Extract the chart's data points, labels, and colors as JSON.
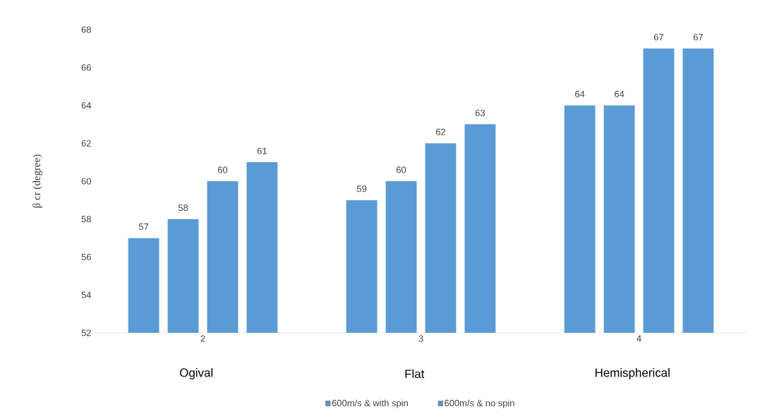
{
  "chart_data": {
    "type": "bar",
    "ylabel": "β cr (degree)",
    "categories": [
      "2",
      "3",
      "4"
    ],
    "series": [
      {
        "name": "600m/s & with spin",
        "color": "#5b9bd5",
        "values": [
          57,
          59,
          64
        ]
      },
      {
        "name": "600m/s & no spin",
        "color": "#5b9bd5",
        "values": [
          58,
          60,
          64
        ]
      },
      {
        "color": "#5b9bd5",
        "values": [
          60,
          62,
          67
        ]
      },
      {
        "color": "#5b9bd5",
        "values": [
          61,
          63,
          67
        ]
      }
    ],
    "ylim": [
      52,
      68
    ],
    "yticks": [
      52,
      54,
      56,
      58,
      60,
      62,
      64,
      66,
      68
    ],
    "data_labels": true,
    "legend": "bottom",
    "annotations": [
      "Ogival",
      "Flat",
      "Hemispherical"
    ]
  }
}
